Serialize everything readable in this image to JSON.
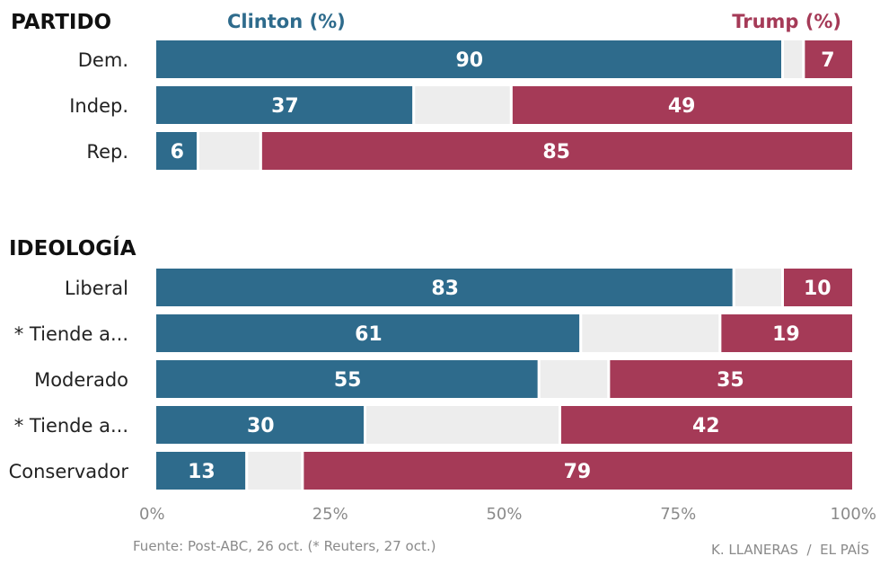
{
  "chart_data": {
    "type": "bar",
    "orientation": "horizontal",
    "stacked": true,
    "series_labels": {
      "clinton": "Clinton (%)",
      "trump": "Trump (%)"
    },
    "groups": [
      {
        "title": "PARTIDO",
        "rows": [
          {
            "label": "Dem.",
            "clinton": 90,
            "trump": 7
          },
          {
            "label": "Indep.",
            "clinton": 37,
            "trump": 49
          },
          {
            "label": "Rep.",
            "clinton": 6,
            "trump": 85
          }
        ]
      },
      {
        "title": "IDEOLOGÍA",
        "rows": [
          {
            "label": "Liberal",
            "clinton": 83,
            "trump": 10
          },
          {
            "label": "* Tiende a...",
            "clinton": 61,
            "trump": 19
          },
          {
            "label": "Moderado",
            "clinton": 55,
            "trump": 35
          },
          {
            "label": "* Tiende a...",
            "clinton": 30,
            "trump": 42
          },
          {
            "label": "Conservador",
            "clinton": 13,
            "trump": 79
          }
        ]
      }
    ],
    "x_ticks": [
      "0%",
      "25%",
      "50%",
      "75%",
      "100%"
    ],
    "xlim": [
      0,
      100
    ],
    "source": "Fuente: Post-ABC, 26 oct. (* Reuters, 27 oct.)",
    "credit": "K. LLANERAS  /  EL PAÍS",
    "colors": {
      "clinton": "#2e6b8c",
      "trump": "#a53a57",
      "other": "#ededed",
      "title": "#111111",
      "label": "#222222",
      "tick": "#8a8a8a",
      "value": "#ffffff"
    }
  }
}
